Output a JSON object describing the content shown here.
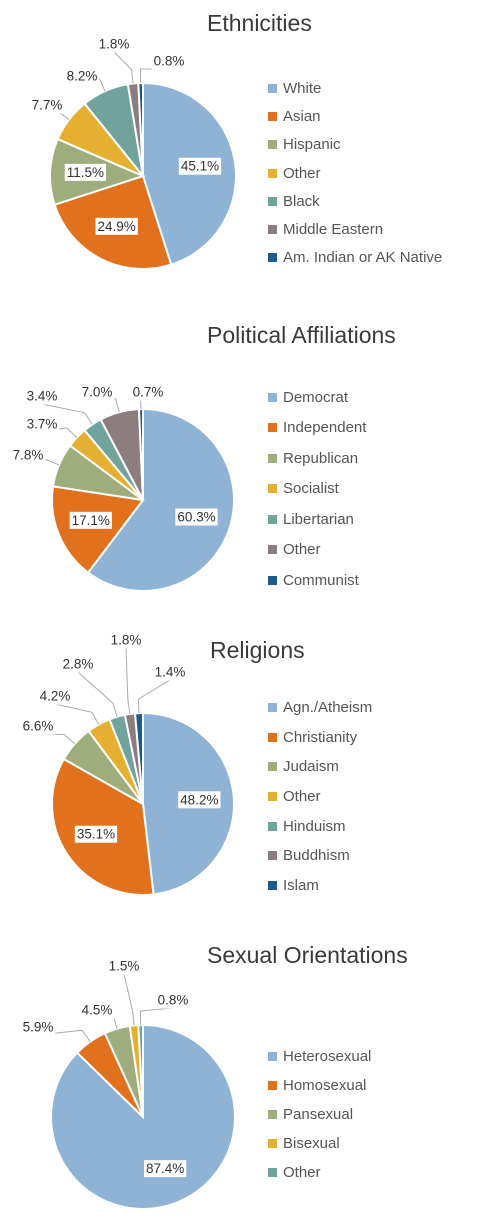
{
  "chart_data": [
    {
      "type": "pie",
      "title": "Ethnicities",
      "slices": [
        {
          "name": "White",
          "value": 45.1,
          "label": "45.1%",
          "color": "#8fb3d5"
        },
        {
          "name": "Asian",
          "value": 24.9,
          "label": "24.9%",
          "color": "#e2711d"
        },
        {
          "name": "Hispanic",
          "value": 11.5,
          "label": "11.5%",
          "color": "#9fac7c"
        },
        {
          "name": "Other",
          "value": 7.7,
          "label": "7.7%",
          "color": "#e5b031"
        },
        {
          "name": "Black",
          "value": 8.2,
          "label": "8.2%",
          "color": "#6fa39c"
        },
        {
          "name": "Middle Eastern",
          "value": 1.8,
          "label": "1.8%",
          "color": "#8c7e7f"
        },
        {
          "name": "Am. Indian or AK Native",
          "value": 0.8,
          "label": "0.8%",
          "color": "#1e5b8c"
        }
      ]
    },
    {
      "type": "pie",
      "title": "Political Affiliations",
      "slices": [
        {
          "name": "Democrat",
          "value": 60.3,
          "label": "60.3%",
          "color": "#8fb3d5"
        },
        {
          "name": "Independent",
          "value": 17.1,
          "label": "17.1%",
          "color": "#e2711d"
        },
        {
          "name": "Republican",
          "value": 7.8,
          "label": "7.8%",
          "color": "#9fac7c"
        },
        {
          "name": "Socialist",
          "value": 3.7,
          "label": "3.7%",
          "color": "#e5b031"
        },
        {
          "name": "Libertarian",
          "value": 3.4,
          "label": "3.4%",
          "color": "#6fa39c"
        },
        {
          "name": "Other",
          "value": 7.0,
          "label": "7.0%",
          "color": "#8c7e7f"
        },
        {
          "name": "Communist",
          "value": 0.7,
          "label": "0.7%",
          "color": "#1e5b8c"
        }
      ]
    },
    {
      "type": "pie",
      "title": "Religions",
      "slices": [
        {
          "name": "Agn./Atheism",
          "value": 48.2,
          "label": "48.2%",
          "color": "#8fb3d5"
        },
        {
          "name": "Christianity",
          "value": 35.1,
          "label": "35.1%",
          "color": "#e2711d"
        },
        {
          "name": "Judaism",
          "value": 6.6,
          "label": "6.6%",
          "color": "#9fac7c"
        },
        {
          "name": "Other",
          "value": 4.2,
          "label": "4.2%",
          "color": "#e5b031"
        },
        {
          "name": "Hinduism",
          "value": 2.8,
          "label": "2.8%",
          "color": "#6fa39c"
        },
        {
          "name": "Buddhism",
          "value": 1.8,
          "label": "1.8%",
          "color": "#8c7e7f"
        },
        {
          "name": "Islam",
          "value": 1.4,
          "label": "1.4%",
          "color": "#1e5b8c"
        }
      ]
    },
    {
      "type": "pie",
      "title": "Sexual Orientations",
      "slices": [
        {
          "name": "Heterosexual",
          "value": 87.4,
          "label": "87.4%",
          "color": "#8fb3d5"
        },
        {
          "name": "Homosexual",
          "value": 5.9,
          "label": "5.9%",
          "color": "#e2711d"
        },
        {
          "name": "Pansexual",
          "value": 4.5,
          "label": "4.5%",
          "color": "#9fac7c"
        },
        {
          "name": "Bisexual",
          "value": 1.5,
          "label": "1.5%",
          "color": "#e5b031"
        },
        {
          "name": "Other",
          "value": 0.8,
          "label": "0.8%",
          "color": "#6fa39c"
        }
      ]
    }
  ]
}
